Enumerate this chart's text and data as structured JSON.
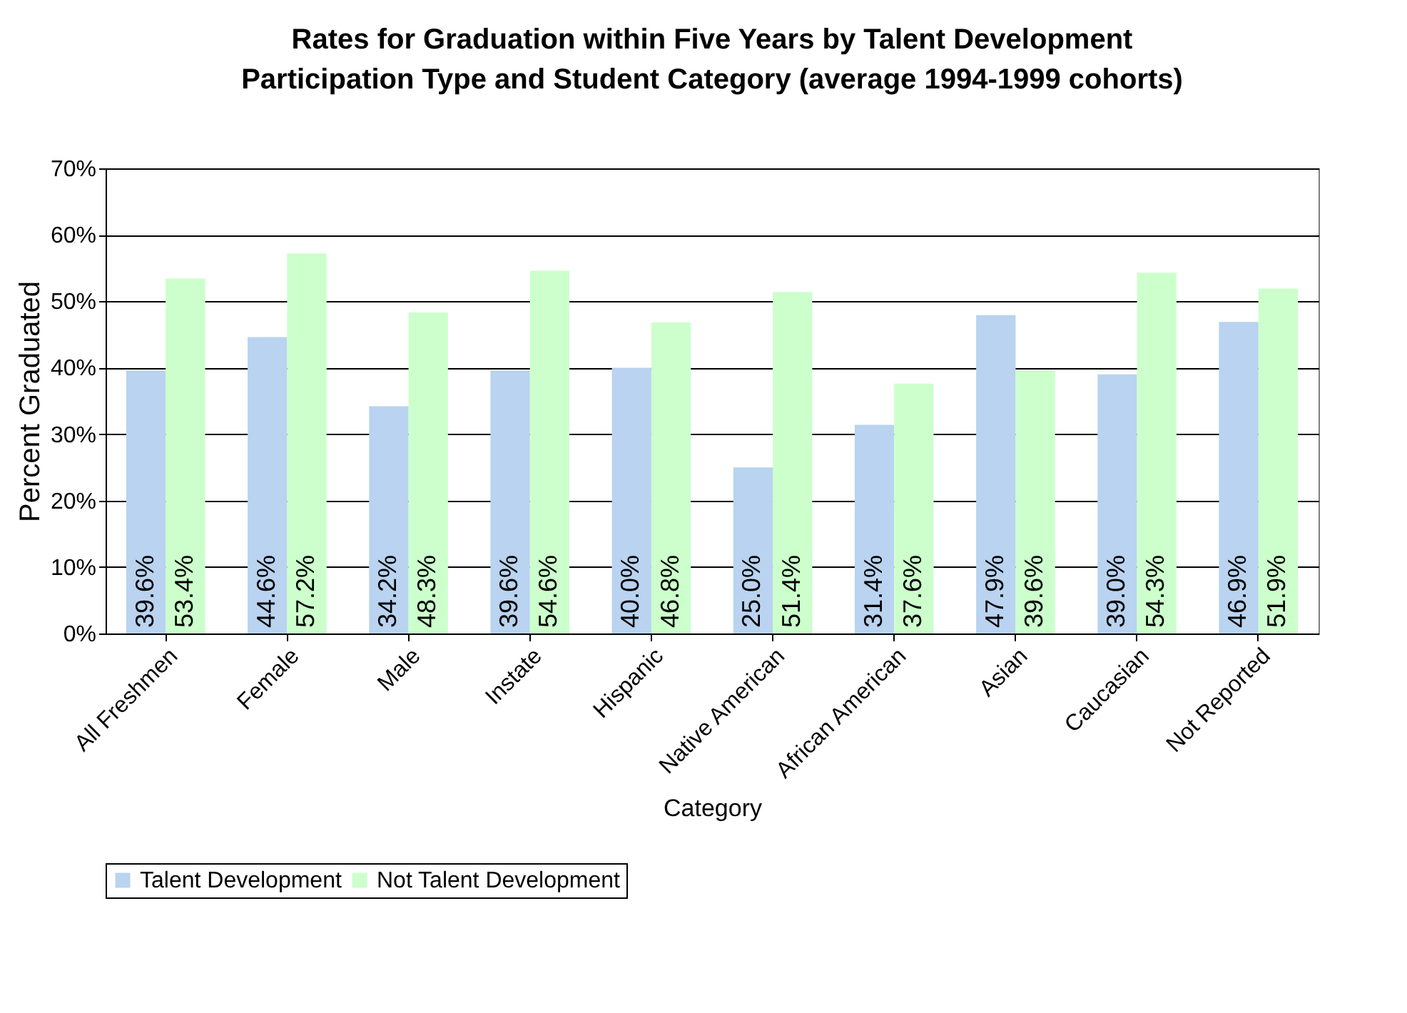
{
  "chart_data": {
    "type": "bar",
    "title": "Rates for Graduation within Five Years by Talent Development Participation Type and Student Category (average 1994-1999 cohorts)",
    "xlabel": "Category",
    "ylabel": "Percent Graduated",
    "categories": [
      "All Freshmen",
      "Female",
      "Male",
      "Instate",
      "Hispanic",
      "Native American",
      "African American",
      "Asian",
      "Caucasian",
      "Not Reported"
    ],
    "series": [
      {
        "name": "Talent Development",
        "color": "#b9d3f0",
        "values": [
          39.6,
          44.6,
          34.2,
          39.6,
          40.0,
          25.0,
          31.4,
          47.9,
          39.0,
          46.9
        ],
        "value_labels": [
          "39.6%",
          "44.6%",
          "34.2%",
          "39.6%",
          "40.0%",
          "25.0%",
          "31.4%",
          "47.9%",
          "39.0%",
          "46.9%"
        ]
      },
      {
        "name": "Not Talent Development",
        "color": "#ccffcc",
        "values": [
          53.4,
          57.2,
          48.3,
          54.6,
          46.8,
          51.4,
          37.6,
          39.6,
          54.3,
          51.9
        ],
        "value_labels": [
          "53.4%",
          "57.2%",
          "48.3%",
          "54.6%",
          "46.8%",
          "51.4%",
          "37.6%",
          "39.6%",
          "54.3%",
          "51.9%"
        ]
      }
    ],
    "ylim": [
      0,
      70
    ],
    "yticks": [
      {
        "value": 0,
        "label": "0%"
      },
      {
        "value": 10,
        "label": "10%"
      },
      {
        "value": 20,
        "label": "20%"
      },
      {
        "value": 30,
        "label": "30%"
      },
      {
        "value": 40,
        "label": "40%"
      },
      {
        "value": 50,
        "label": "50%"
      },
      {
        "value": 60,
        "label": "60%"
      },
      {
        "value": 70,
        "label": "70%"
      }
    ],
    "grid": "y",
    "legend": "bottom"
  }
}
